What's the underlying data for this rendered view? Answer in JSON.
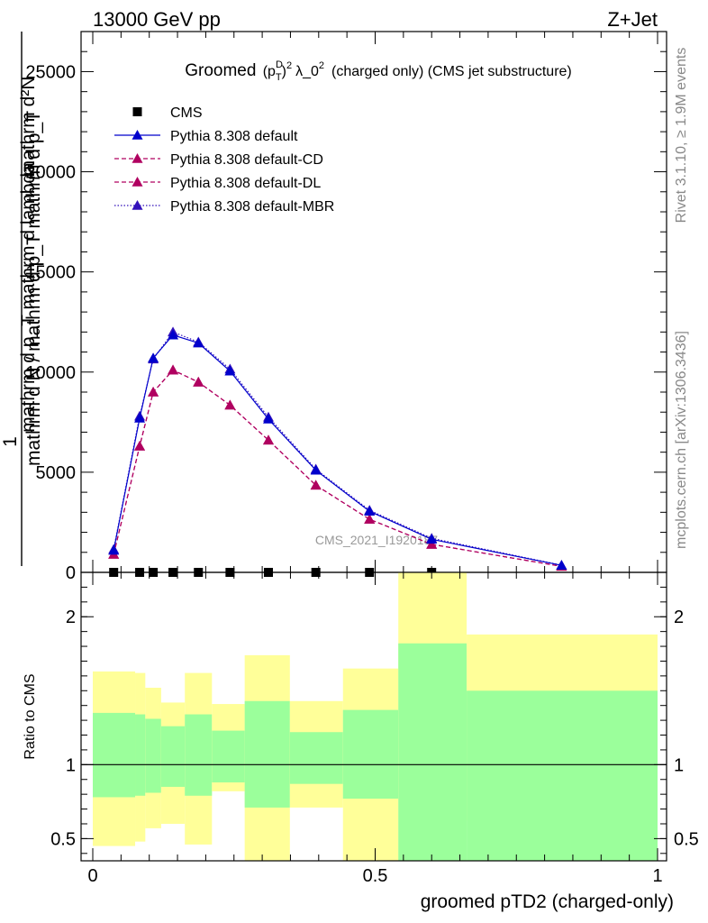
{
  "header": {
    "left": "13000 GeV pp",
    "right": "Z+Jet"
  },
  "side_labels": {
    "rivet": "Rivet 3.1.10, ≥ 1.9M events",
    "mcplots": "mcplots.cern.ch [arXiv:1306.3436]"
  },
  "colors": {
    "cms": "#000000",
    "default": "#0000cc",
    "default_cd": "#b00060",
    "default_dl": "#b00060",
    "default_mbr": "#3311bb",
    "band_inner": "#9bff9b",
    "band_outer": "#ffff99"
  },
  "chart_data": [
    {
      "type": "line",
      "title": "Groomed (p_T^D)^2 λ_0^2  (charged only) (CMS jet substructure)",
      "title_parts": {
        "lead": "Groomed",
        "pt": "p",
        "pt_sub": "T",
        "pt_sup": "D",
        "power": "2",
        "lambda": "λ_0",
        "lambda_power": "2",
        "tail": "(charged only) (CMS jet substructure)"
      },
      "ylabel_upper": "mathrm d²N",
      "ylabel_upper2": "mathrm d p_T mathrm d lambda",
      "ylabel_frac_num": "1",
      "ylabel_lower": "mathrm d N / mathrm d p_T mathrm d p_T",
      "watermark": "CMS_2021_I1920187",
      "xlim": [
        0,
        1
      ],
      "ylim": [
        0,
        27000
      ],
      "yticks": [
        0,
        5000,
        10000,
        15000,
        20000,
        25000
      ],
      "ytick_labels": [
        "0",
        "5000",
        "10000",
        "15000",
        "20000",
        "25000"
      ],
      "legend_position": "top-left",
      "series": [
        {
          "name": "CMS",
          "key": "cms",
          "marker": "square",
          "dash": "none",
          "x": [
            0.037,
            0.083,
            0.107,
            0.142,
            0.187,
            0.243,
            0.311,
            0.395,
            0.49,
            0.6
          ],
          "y": [
            0,
            0,
            0,
            0,
            0,
            0,
            0,
            0,
            0,
            0
          ]
        },
        {
          "name": "Pythia 8.308 default",
          "key": "default",
          "marker": "triangle",
          "dash": "none",
          "x": [
            0.037,
            0.083,
            0.107,
            0.142,
            0.187,
            0.243,
            0.311,
            0.395,
            0.49,
            0.6,
            0.83
          ],
          "y": [
            1100,
            7700,
            10700,
            11850,
            11450,
            10050,
            7650,
            5100,
            3050,
            1650,
            350
          ]
        },
        {
          "name": "Pythia 8.308 default-CD",
          "key": "default_cd",
          "marker": "triangle",
          "dash": "5,3",
          "x": [
            0.037,
            0.083,
            0.107,
            0.142,
            0.187,
            0.243,
            0.311,
            0.395,
            0.49,
            0.6,
            0.83
          ],
          "y": [
            900,
            6300,
            9000,
            10100,
            9500,
            8350,
            6600,
            4350,
            2650,
            1400,
            300
          ]
        },
        {
          "name": "Pythia 8.308 default-DL",
          "key": "default_dl",
          "marker": "triangle",
          "dash": "5,3",
          "x": [
            0.037,
            0.083,
            0.107,
            0.142,
            0.187,
            0.243,
            0.311,
            0.395,
            0.49,
            0.6,
            0.83
          ],
          "y": [
            900,
            6300,
            9000,
            10100,
            9500,
            8350,
            6600,
            4350,
            2650,
            1400,
            300
          ]
        },
        {
          "name": "Pythia 8.308 default-MBR",
          "key": "default_mbr",
          "marker": "triangle",
          "dash": "1.5,2",
          "x": [
            0.037,
            0.083,
            0.107,
            0.142,
            0.187,
            0.243,
            0.311,
            0.395,
            0.49,
            0.6,
            0.83
          ],
          "y": [
            1150,
            7800,
            10650,
            12000,
            11500,
            10150,
            7750,
            5150,
            3100,
            1700,
            360
          ]
        }
      ]
    },
    {
      "type": "area",
      "ylabel": "Ratio to CMS",
      "xlabel": "groomed pTD2 (charged-only)",
      "xlim": [
        0,
        1
      ],
      "ylim": [
        0.35,
        2.3
      ],
      "xticks": [
        0,
        0.5,
        1
      ],
      "xtick_labels": [
        "0",
        "0.5",
        "1"
      ],
      "yticks": [
        0.5,
        1,
        2
      ],
      "ytick_labels": [
        "0.5",
        "1",
        "2"
      ],
      "reference_line": 1,
      "bins": [
        {
          "lo": 0.0,
          "hi": 0.075,
          "inner": [
            0.78,
            1.35
          ],
          "outer": [
            0.45,
            1.63
          ]
        },
        {
          "lo": 0.075,
          "hi": 0.093,
          "inner": [
            0.79,
            1.34
          ],
          "outer": [
            0.48,
            1.62
          ]
        },
        {
          "lo": 0.093,
          "hi": 0.121,
          "inner": [
            0.81,
            1.31
          ],
          "outer": [
            0.57,
            1.52
          ]
        },
        {
          "lo": 0.121,
          "hi": 0.163,
          "inner": [
            0.85,
            1.26
          ],
          "outer": [
            0.6,
            1.42
          ]
        },
        {
          "lo": 0.163,
          "hi": 0.211,
          "inner": [
            0.79,
            1.34
          ],
          "outer": [
            0.46,
            1.62
          ]
        },
        {
          "lo": 0.211,
          "hi": 0.269,
          "inner": [
            0.88,
            1.23
          ],
          "outer": [
            0.82,
            1.41
          ]
        },
        {
          "lo": 0.269,
          "hi": 0.349,
          "inner": [
            0.71,
            1.43
          ],
          "outer": [
            0.35,
            1.74
          ]
        },
        {
          "lo": 0.349,
          "hi": 0.443,
          "inner": [
            0.87,
            1.22
          ],
          "outer": [
            0.71,
            1.43
          ]
        },
        {
          "lo": 0.443,
          "hi": 0.541,
          "inner": [
            0.77,
            1.37
          ],
          "outer": [
            0.35,
            1.65
          ]
        },
        {
          "lo": 0.541,
          "hi": 0.662,
          "inner": [
            0.35,
            1.82
          ],
          "outer": [
            0.35,
            2.3
          ]
        },
        {
          "lo": 0.662,
          "hi": 1.0,
          "inner": [
            0.35,
            1.5
          ],
          "outer": [
            0.62,
            1.88
          ]
        }
      ]
    }
  ]
}
